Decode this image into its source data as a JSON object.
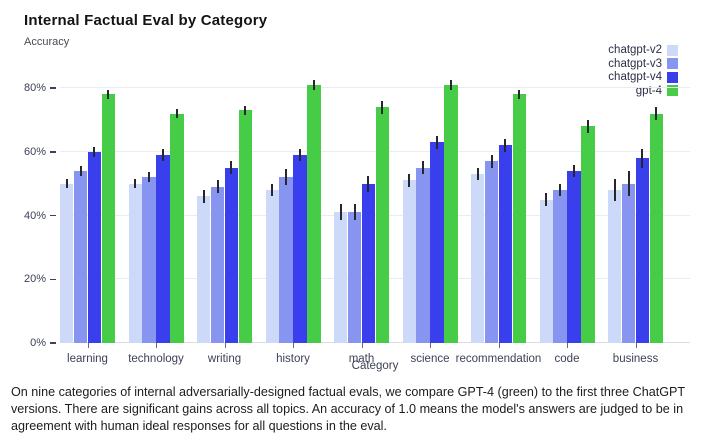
{
  "title": "Internal Factual Eval by Category",
  "subtitle": "Accuracy",
  "caption": "On nine categories of internal adversarially-designed factual evals, we compare GPT-4 (green) to the first three ChatGPT versions. There are significant gains across all topics. An accuracy of 1.0 means the model's answers are judged to be in agreement with human ideal responses for all questions in the eval.",
  "colors": {
    "chatgpt_v2": "#ccd9f8",
    "chatgpt_v3": "#8794f0",
    "chatgpt_v4": "#3a3fee",
    "gpt4": "#47cc47",
    "gridline": "#ebebf2",
    "axis_text": "#3c4257",
    "error_bar": "#26262e"
  },
  "chart_data": {
    "type": "bar",
    "title": "Internal Factual Eval by Category",
    "xlabel": "Category",
    "ylabel": "Accuracy",
    "units": "percent",
    "ylim": [
      0,
      89
    ],
    "ytick_labels": [
      "0%",
      "20%",
      "40%",
      "60%",
      "80%"
    ],
    "ytick_values": [
      0,
      20,
      40,
      60,
      80
    ],
    "grid": true,
    "legend_position": "top-right",
    "error_bars": true,
    "categories": [
      "learning",
      "technology",
      "writing",
      "history",
      "math",
      "science",
      "recommendation",
      "code",
      "business"
    ],
    "series": [
      {
        "name": "chatgpt-v2",
        "color": "#ccd9f8",
        "values": [
          50,
          50,
          46,
          48,
          41,
          51,
          53,
          45,
          48
        ],
        "errors": [
          1.5,
          1.5,
          2,
          2,
          2.5,
          2,
          2,
          2,
          3.5
        ]
      },
      {
        "name": "chatgpt-v3",
        "color": "#8794f0",
        "values": [
          54,
          52,
          49,
          52,
          41,
          55,
          57,
          48,
          50
        ],
        "errors": [
          1.5,
          1.5,
          2,
          2.5,
          2.5,
          2,
          2,
          2,
          4
        ]
      },
      {
        "name": "chatgpt-v4",
        "color": "#3a3fee",
        "values": [
          60,
          59,
          55,
          59,
          50,
          63,
          62,
          54,
          58
        ],
        "errors": [
          1.5,
          2,
          2,
          2,
          2.5,
          2,
          2,
          2,
          3
        ]
      },
      {
        "name": "gpt-4",
        "color": "#47cc47",
        "values": [
          78,
          72,
          73,
          81,
          74,
          81,
          78,
          68,
          72
        ],
        "errors": [
          1.5,
          1.5,
          1.5,
          1.5,
          2,
          1.5,
          1.5,
          2,
          2
        ]
      }
    ]
  }
}
